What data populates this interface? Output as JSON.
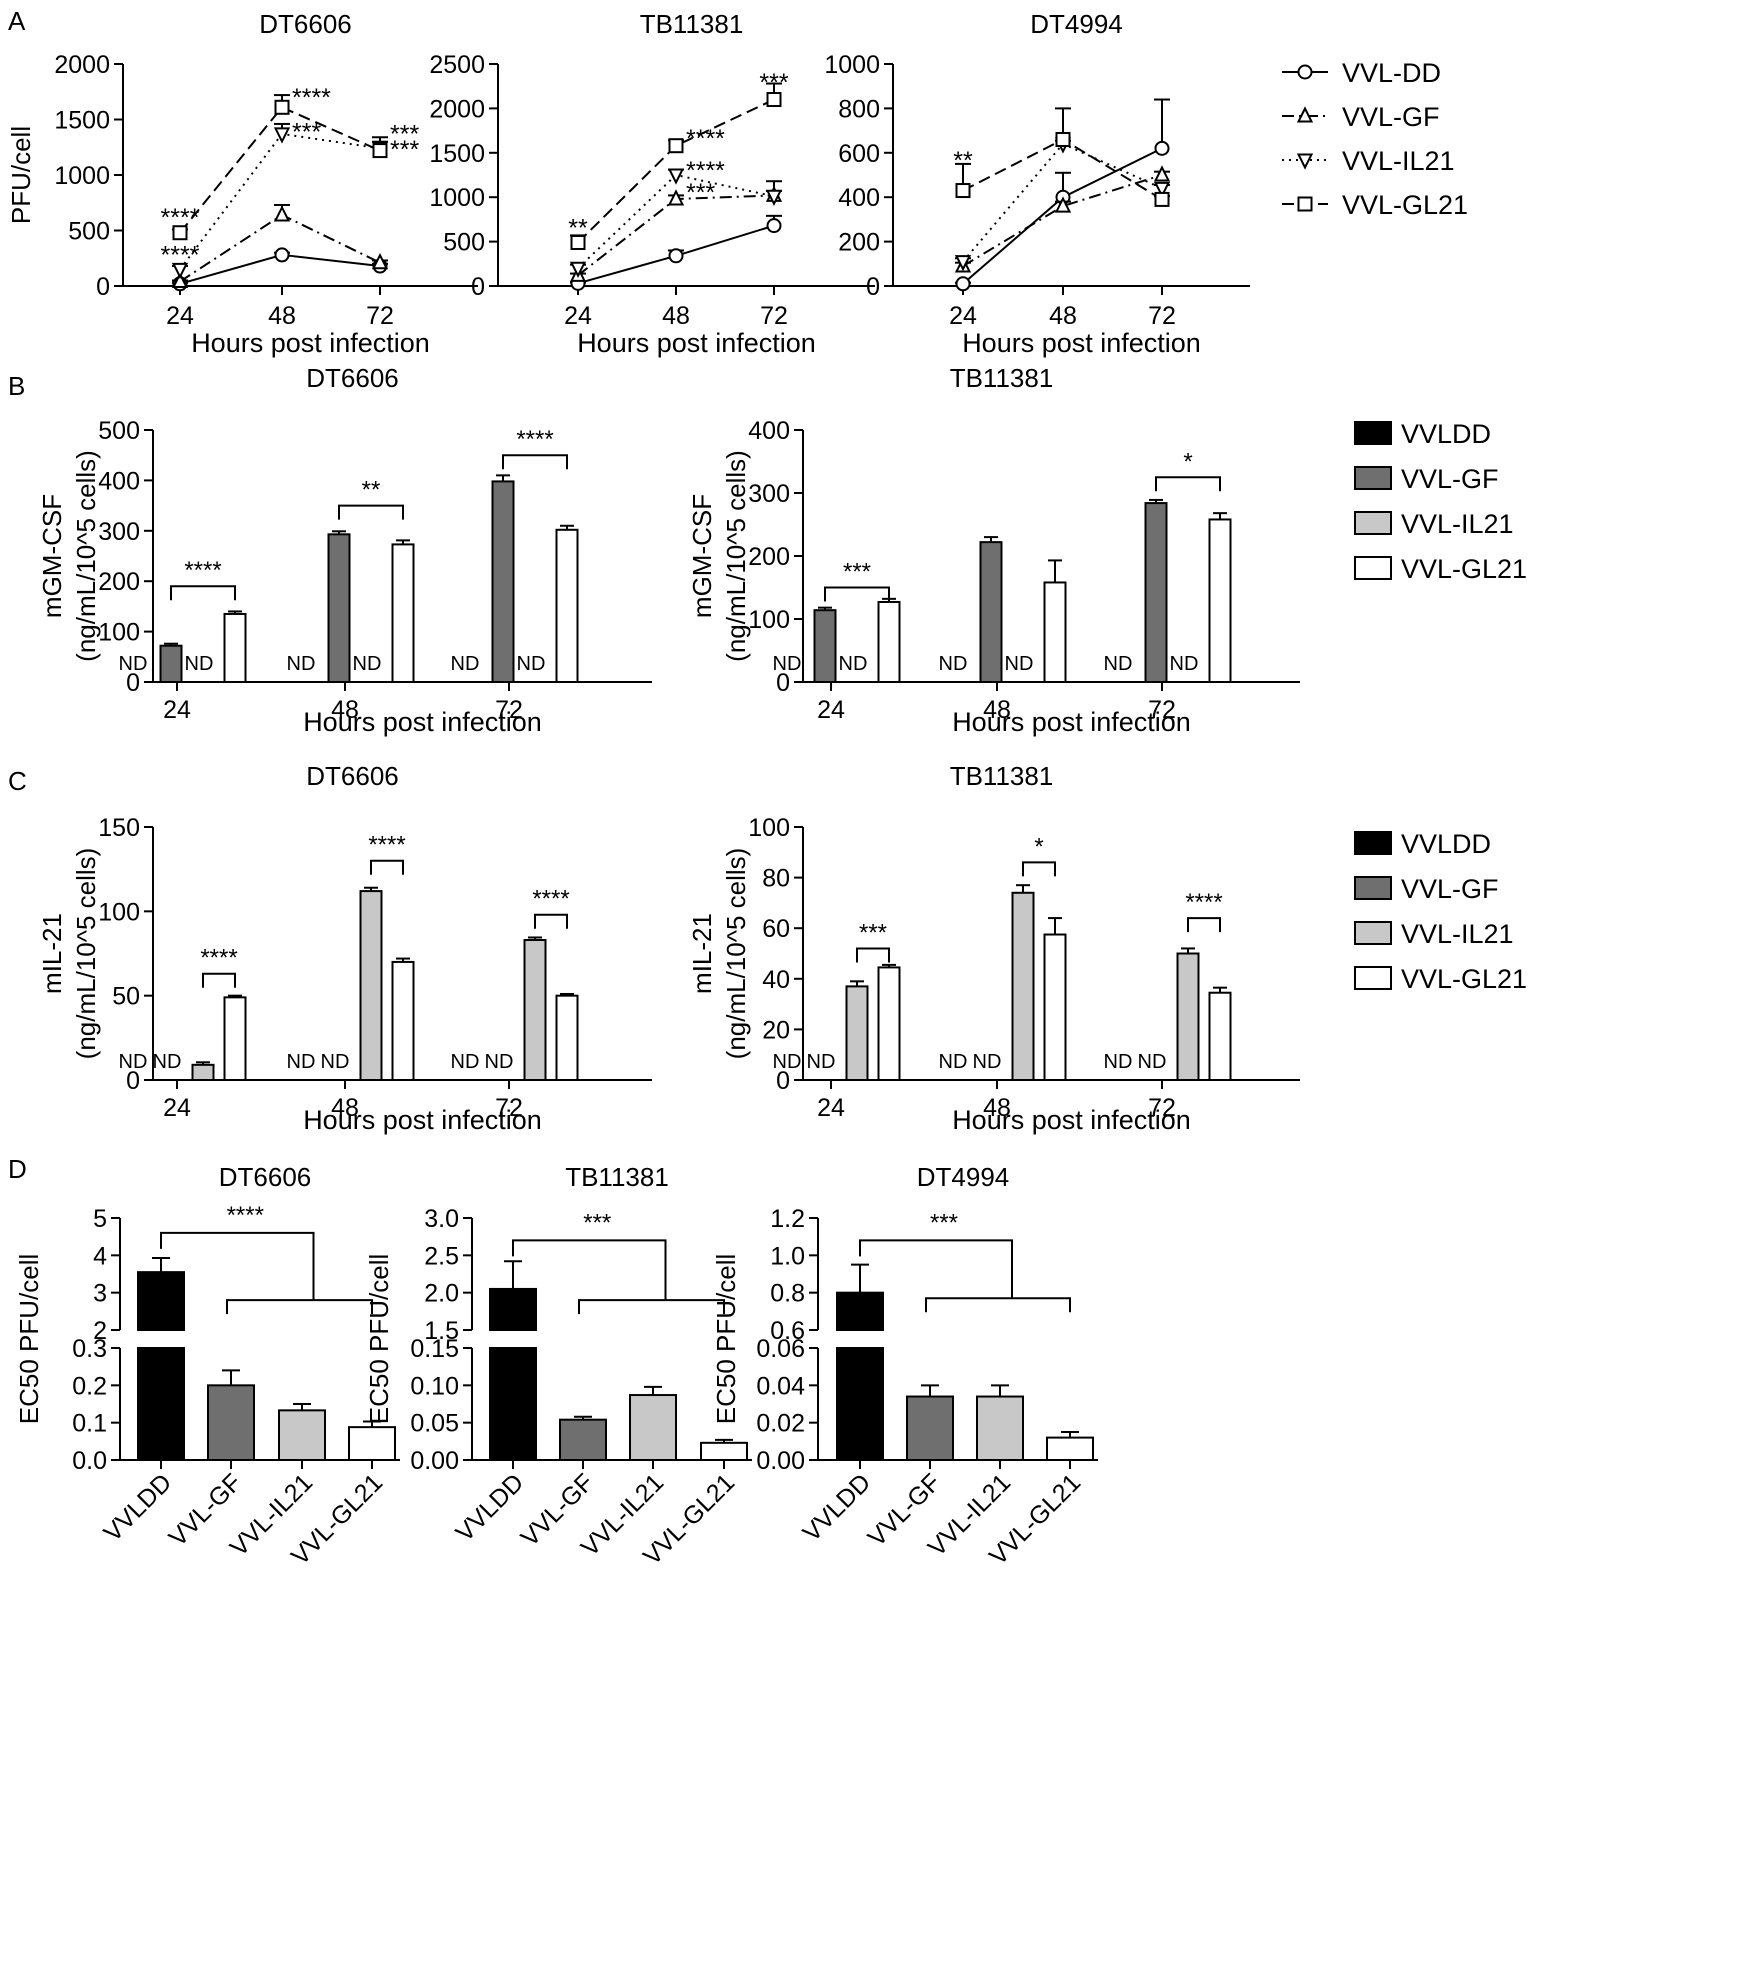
{
  "colors": {
    "VVLDD": "#000000",
    "VVL-GF": "#6f6f6f",
    "VVL-IL21": "#c8c8c8",
    "VVL-GL21": "#ffffff",
    "stroke": "#000000"
  },
  "chart_data": [
    {
      "id": "A1",
      "panel_letter": "A",
      "type": "line",
      "title": "DT6606",
      "xlabel": "Hours post infection",
      "ylabel": "PFU/cell",
      "categories": [
        "24",
        "48",
        "72"
      ],
      "ylim": [
        0,
        2000
      ],
      "yticks": [
        "0",
        "500",
        "1000",
        "1500",
        "2000"
      ],
      "series": [
        {
          "name": "VVL-DD",
          "marker": "circle",
          "dash": "solid",
          "values": [
            20,
            280,
            180
          ],
          "errors": [
            10,
            20,
            20
          ]
        },
        {
          "name": "VVL-GF",
          "marker": "triangle-up",
          "dash": "dashdot",
          "values": [
            40,
            640,
            210
          ],
          "errors": [
            10,
            90,
            20
          ]
        },
        {
          "name": "VVL-IL21",
          "marker": "triangle-down",
          "dash": "dotted",
          "values": [
            150,
            1370,
            1240
          ],
          "errors": [
            30,
            90,
            60
          ]
        },
        {
          "name": "VVL-GL21",
          "marker": "square",
          "dash": "dashed",
          "values": [
            480,
            1610,
            1220
          ],
          "errors": [
            30,
            110,
            120
          ]
        }
      ],
      "stars": [
        {
          "x": 0,
          "y": 650,
          "label": "****"
        },
        {
          "x": 0,
          "y": 310,
          "label": "****"
        },
        {
          "x": 1,
          "y": 1730,
          "label": "****"
        },
        {
          "x": 1,
          "y": 1420,
          "label": "***"
        },
        {
          "x": 2,
          "y": 1400,
          "label": "***"
        },
        {
          "x": 2,
          "y": 1260,
          "label": "***"
        }
      ]
    },
    {
      "id": "A2",
      "panel_letter": "",
      "type": "line",
      "title": "TB11381",
      "xlabel": "Hours post infection",
      "ylabel": "",
      "categories": [
        "24",
        "48",
        "72"
      ],
      "ylim": [
        0,
        2500
      ],
      "yticks": [
        "0",
        "500",
        "1000",
        "1500",
        "2000",
        "2500"
      ],
      "series": [
        {
          "name": "VVL-DD",
          "marker": "circle",
          "dash": "solid",
          "values": [
            30,
            340,
            680
          ],
          "errors": [
            10,
            60,
            110
          ]
        },
        {
          "name": "VVL-GF",
          "marker": "triangle-up",
          "dash": "dashdot",
          "values": [
            120,
            980,
            1020
          ],
          "errors": [
            20,
            40,
            160
          ]
        },
        {
          "name": "VVL-IL21",
          "marker": "triangle-down",
          "dash": "dotted",
          "values": [
            200,
            1250,
            1010
          ],
          "errors": [
            40,
            60,
            60
          ]
        },
        {
          "name": "VVL-GL21",
          "marker": "square",
          "dash": "dashed",
          "values": [
            490,
            1580,
            2100
          ],
          "errors": [
            80,
            60,
            180
          ]
        }
      ],
      "stars": [
        {
          "x": 0,
          "y": 690,
          "label": "**"
        },
        {
          "x": 1,
          "y": 1700,
          "label": "****"
        },
        {
          "x": 1,
          "y": 1340,
          "label": "****"
        },
        {
          "x": 1,
          "y": 1090,
          "label": "***"
        },
        {
          "x": 2,
          "y": 2330,
          "label": "***"
        }
      ]
    },
    {
      "id": "A3",
      "panel_letter": "",
      "type": "line",
      "title": "DT4994",
      "xlabel": "Hours post infection",
      "ylabel": "",
      "categories": [
        "24",
        "48",
        "72"
      ],
      "ylim": [
        0,
        1000
      ],
      "yticks": [
        "0",
        "200",
        "400",
        "600",
        "800",
        "1000"
      ],
      "series": [
        {
          "name": "VVL-DD",
          "marker": "circle",
          "dash": "solid",
          "values": [
            10,
            400,
            620
          ],
          "errors": [
            5,
            110,
            220
          ]
        },
        {
          "name": "VVL-GF",
          "marker": "triangle-up",
          "dash": "dashdot",
          "values": [
            90,
            360,
            500
          ],
          "errors": [
            15,
            20,
            15
          ]
        },
        {
          "name": "VVL-IL21",
          "marker": "triangle-down",
          "dash": "dotted",
          "values": [
            110,
            640,
            440
          ],
          "errors": [
            15,
            15,
            15
          ]
        },
        {
          "name": "VVL-GL21",
          "marker": "square",
          "dash": "dashed",
          "values": [
            430,
            660,
            390
          ],
          "errors": [
            120,
            140,
            15
          ]
        }
      ],
      "stars": [
        {
          "x": 0,
          "y": 580,
          "label": "**"
        }
      ],
      "legend": [
        "VVL-DD",
        "VVL-GF",
        "VVL-IL21",
        "VVL-GL21"
      ]
    },
    {
      "id": "B1",
      "panel_letter": "B",
      "type": "bar",
      "title": "DT6606",
      "xlabel": "Hours post infection",
      "ylabel": [
        "mGM-CSF",
        "(ng/mL/10^5 cells)"
      ],
      "categories": [
        "24",
        "48",
        "72"
      ],
      "ylim": [
        0,
        500
      ],
      "yticks": [
        "0",
        "100",
        "200",
        "300",
        "400",
        "500"
      ],
      "series": [
        {
          "name": "VVLDD",
          "values": [
            null,
            null,
            null
          ],
          "errors": [
            0,
            0,
            0
          ]
        },
        {
          "name": "VVL-GF",
          "values": [
            72,
            293,
            398
          ],
          "errors": [
            4,
            6,
            12
          ]
        },
        {
          "name": "VVL-IL21",
          "values": [
            null,
            null,
            null
          ],
          "errors": [
            0,
            0,
            0
          ]
        },
        {
          "name": "VVL-GL21",
          "values": [
            135,
            273,
            302
          ],
          "errors": [
            5,
            8,
            8
          ]
        }
      ],
      "nd_label": "ND",
      "brackets": [
        {
          "cat": 0,
          "from": 1,
          "to": 3,
          "y": 190,
          "label": "****"
        },
        {
          "cat": 1,
          "from": 1,
          "to": 3,
          "y": 350,
          "label": "**"
        },
        {
          "cat": 2,
          "from": 1,
          "to": 3,
          "y": 450,
          "label": "****"
        }
      ]
    },
    {
      "id": "B2",
      "panel_letter": "",
      "type": "bar",
      "title": "TB11381",
      "xlabel": "Hours post infection",
      "ylabel": [
        "mGM-CSF",
        "(ng/mL/10^5 cells)"
      ],
      "categories": [
        "24",
        "48",
        "72"
      ],
      "ylim": [
        0,
        400
      ],
      "yticks": [
        "0",
        "100",
        "200",
        "300",
        "400"
      ],
      "series": [
        {
          "name": "VVLDD",
          "values": [
            null,
            null,
            null
          ],
          "errors": [
            0,
            0,
            0
          ]
        },
        {
          "name": "VVL-GF",
          "values": [
            114,
            222,
            284
          ],
          "errors": [
            4,
            8,
            5
          ]
        },
        {
          "name": "VVL-IL21",
          "values": [
            null,
            null,
            null
          ],
          "errors": [
            0,
            0,
            0
          ]
        },
        {
          "name": "VVL-GL21",
          "values": [
            127,
            158,
            258
          ],
          "errors": [
            5,
            35,
            10
          ]
        }
      ],
      "nd_label": "ND",
      "brackets": [
        {
          "cat": 0,
          "from": 1,
          "to": 3,
          "y": 150,
          "label": "***"
        },
        {
          "cat": 2,
          "from": 1,
          "to": 3,
          "y": 325,
          "label": "*"
        }
      ],
      "legend": [
        "VVLDD",
        "VVL-GF",
        "VVL-IL21",
        "VVL-GL21"
      ]
    },
    {
      "id": "C1",
      "panel_letter": "C",
      "type": "bar",
      "title": "DT6606",
      "xlabel": "Hours post infection",
      "ylabel": [
        "mIL-21",
        "(ng/mL/10^5 cells)"
      ],
      "categories": [
        "24",
        "48",
        "72"
      ],
      "ylim": [
        0,
        150
      ],
      "yticks": [
        "0",
        "50",
        "100",
        "150"
      ],
      "series": [
        {
          "name": "VVLDD",
          "values": [
            null,
            null,
            null
          ],
          "errors": [
            0,
            0,
            0
          ]
        },
        {
          "name": "VVL-GF",
          "values": [
            null,
            null,
            null
          ],
          "errors": [
            0,
            0,
            0
          ]
        },
        {
          "name": "VVL-IL21",
          "values": [
            9,
            112,
            83
          ],
          "errors": [
            1.5,
            2,
            1.5
          ]
        },
        {
          "name": "VVL-GL21",
          "values": [
            49,
            70,
            50
          ],
          "errors": [
            1,
            2,
            1
          ]
        }
      ],
      "nd_label": "ND",
      "brackets": [
        {
          "cat": 0,
          "from": 2,
          "to": 3,
          "y": 63,
          "label": "****"
        },
        {
          "cat": 1,
          "from": 2,
          "to": 3,
          "y": 130,
          "label": "****"
        },
        {
          "cat": 2,
          "from": 2,
          "to": 3,
          "y": 98,
          "label": "****"
        }
      ]
    },
    {
      "id": "C2",
      "panel_letter": "",
      "type": "bar",
      "title": "TB11381",
      "xlabel": "Hours post infection",
      "ylabel": [
        "mIL-21",
        "(ng/mL/10^5 cells)"
      ],
      "categories": [
        "24",
        "48",
        "72"
      ],
      "ylim": [
        0,
        100
      ],
      "yticks": [
        "0",
        "20",
        "40",
        "60",
        "80",
        "100"
      ],
      "series": [
        {
          "name": "VVLDD",
          "values": [
            null,
            null,
            null
          ],
          "errors": [
            0,
            0,
            0
          ]
        },
        {
          "name": "VVL-GF",
          "values": [
            null,
            null,
            null
          ],
          "errors": [
            0,
            0,
            0
          ]
        },
        {
          "name": "VVL-IL21",
          "values": [
            37,
            74,
            50
          ],
          "errors": [
            2,
            3,
            2
          ]
        },
        {
          "name": "VVL-GL21",
          "values": [
            44.5,
            57.5,
            34.5
          ],
          "errors": [
            1,
            6.5,
            2
          ]
        }
      ],
      "nd_label": "ND",
      "brackets": [
        {
          "cat": 0,
          "from": 2,
          "to": 3,
          "y": 52,
          "label": "***"
        },
        {
          "cat": 1,
          "from": 2,
          "to": 3,
          "y": 86,
          "label": "*"
        },
        {
          "cat": 2,
          "from": 2,
          "to": 3,
          "y": 64,
          "label": "****"
        }
      ],
      "legend": [
        "VVLDD",
        "VVL-GF",
        "VVL-IL21",
        "VVL-GL21"
      ]
    },
    {
      "id": "D1",
      "panel_letter": "D",
      "type": "bar",
      "title": "DT6606",
      "ylabel": "EC50 PFU/cell",
      "broken_axis": true,
      "categories": [
        "VVLDD",
        "VVL-GF",
        "VVL-IL21",
        "VVL-GL21"
      ],
      "values": [
        3.55,
        0.2,
        0.133,
        0.088
      ],
      "errors": [
        0.38,
        0.04,
        0.017,
        0.015
      ],
      "upper_ylim": [
        2,
        5
      ],
      "upper_yticks": [
        "2",
        "3",
        "4",
        "5"
      ],
      "lower_ylim": [
        0,
        0.3
      ],
      "lower_yticks": [
        "0.0",
        "0.1",
        "0.2",
        "0.3"
      ],
      "significance": {
        "label": "****",
        "top_y": 4.6,
        "group_y": 2.8
      }
    },
    {
      "id": "D2",
      "panel_letter": "",
      "type": "bar",
      "title": "TB11381",
      "ylabel": "EC50 PFU/cell",
      "broken_axis": true,
      "categories": [
        "VVLDD",
        "VVL-GF",
        "VVL-IL21",
        "VVL-GL21"
      ],
      "values": [
        2.05,
        0.054,
        0.087,
        0.023
      ],
      "errors": [
        0.37,
        0.004,
        0.011,
        0.004
      ],
      "upper_ylim": [
        1.5,
        3.0
      ],
      "upper_yticks": [
        "1.5",
        "2.0",
        "2.5",
        "3.0"
      ],
      "lower_ylim": [
        0,
        0.15
      ],
      "lower_yticks": [
        "0.00",
        "0.05",
        "0.10",
        "0.15"
      ],
      "significance": {
        "label": "***",
        "top_y": 2.7,
        "group_y": 1.9
      }
    },
    {
      "id": "D3",
      "panel_letter": "",
      "type": "bar",
      "title": "DT4994",
      "ylabel": "EC50 PFU/cell",
      "broken_axis": true,
      "categories": [
        "VVLDD",
        "VVL-GF",
        "VVL-IL21",
        "VVL-GL21"
      ],
      "values": [
        0.8,
        0.034,
        0.034,
        0.012
      ],
      "errors": [
        0.15,
        0.006,
        0.006,
        0.003
      ],
      "upper_ylim": [
        0.6,
        1.2
      ],
      "upper_yticks": [
        "0.6",
        "0.8",
        "1.0",
        "1.2"
      ],
      "lower_ylim": [
        0,
        0.06
      ],
      "lower_yticks": [
        "0.00",
        "0.02",
        "0.04",
        "0.06"
      ],
      "significance": {
        "label": "***",
        "top_y": 1.08,
        "group_y": 0.77
      }
    }
  ]
}
